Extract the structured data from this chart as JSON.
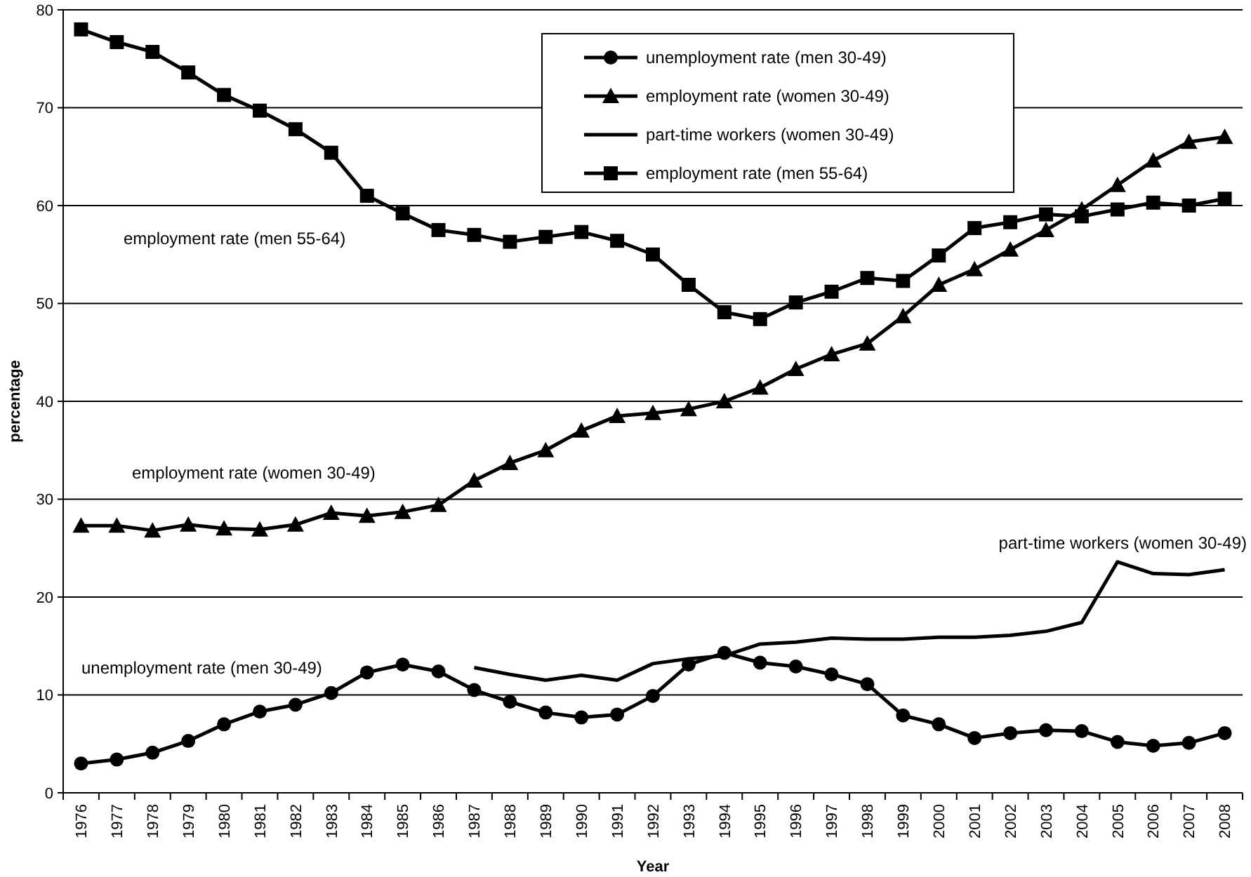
{
  "chart_data": {
    "type": "line",
    "xlabel": "Year",
    "ylabel": "percentage",
    "categories": [
      "1976",
      "1977",
      "1978",
      "1979",
      "1980",
      "1981",
      "1982",
      "1983",
      "1984",
      "1985",
      "1986",
      "1987",
      "1988",
      "1989",
      "1990",
      "1991",
      "1992",
      "1993",
      "1994",
      "1995",
      "1996",
      "1997",
      "1998",
      "1999",
      "2000",
      "2001",
      "2002",
      "2003",
      "2004",
      "2005",
      "2006",
      "2007",
      "2008"
    ],
    "series": [
      {
        "name": "unemployment rate (men 30-49)",
        "color": "#000000",
        "marker": "circle",
        "values": [
          3.0,
          3.4,
          4.1,
          5.3,
          7.0,
          8.3,
          9.0,
          10.2,
          12.3,
          13.1,
          12.4,
          10.5,
          9.3,
          8.2,
          7.7,
          8.0,
          9.9,
          13.1,
          14.3,
          13.3,
          12.9,
          12.1,
          11.1,
          7.9,
          7.0,
          5.6,
          6.1,
          6.4,
          6.3,
          5.2,
          4.8,
          5.1,
          6.1
        ]
      },
      {
        "name": "employment rate (women 30-49)",
        "color": "#000000",
        "marker": "triangle",
        "values": [
          27.3,
          27.3,
          26.8,
          27.4,
          27.0,
          26.9,
          27.4,
          28.6,
          28.3,
          28.7,
          29.4,
          31.9,
          33.7,
          35.0,
          37.0,
          38.5,
          38.8,
          39.2,
          40.0,
          41.4,
          43.3,
          44.8,
          45.9,
          48.7,
          51.9,
          53.5,
          55.5,
          57.5,
          59.6,
          62.1,
          64.6,
          66.5,
          67.0
        ]
      },
      {
        "name": "part-time workers (women 30-49)",
        "color": "#000000",
        "marker": "none",
        "values": [
          null,
          null,
          null,
          null,
          null,
          null,
          null,
          null,
          null,
          null,
          null,
          12.8,
          12.1,
          11.5,
          12.0,
          11.5,
          13.2,
          13.7,
          14.0,
          15.2,
          15.4,
          15.8,
          15.7,
          15.7,
          15.9,
          15.9,
          16.1,
          16.5,
          17.4,
          23.6,
          22.4,
          22.3,
          22.8
        ]
      },
      {
        "name": "employment rate (men 55-64)",
        "color": "#000000",
        "marker": "square",
        "values": [
          78.0,
          76.7,
          75.7,
          73.6,
          71.3,
          69.7,
          67.8,
          65.4,
          61.0,
          59.2,
          57.5,
          57.0,
          56.3,
          56.8,
          57.3,
          56.4,
          55.0,
          51.9,
          49.1,
          48.4,
          50.1,
          51.2,
          52.6,
          52.3,
          54.9,
          57.7,
          58.3,
          59.1,
          58.9,
          59.6,
          60.3,
          60.0,
          60.7
        ]
      }
    ],
    "ylim": [
      0,
      80
    ],
    "yticks": [
      0,
      10,
      20,
      30,
      40,
      50,
      60,
      70,
      80
    ],
    "grid": "y",
    "legend": "top right",
    "annotations": [
      "employment rate (men 55-64)",
      "employment rate (women 30-49)",
      "unemployment rate (men 30-49)",
      "part-time workers (women 30-49)"
    ]
  }
}
